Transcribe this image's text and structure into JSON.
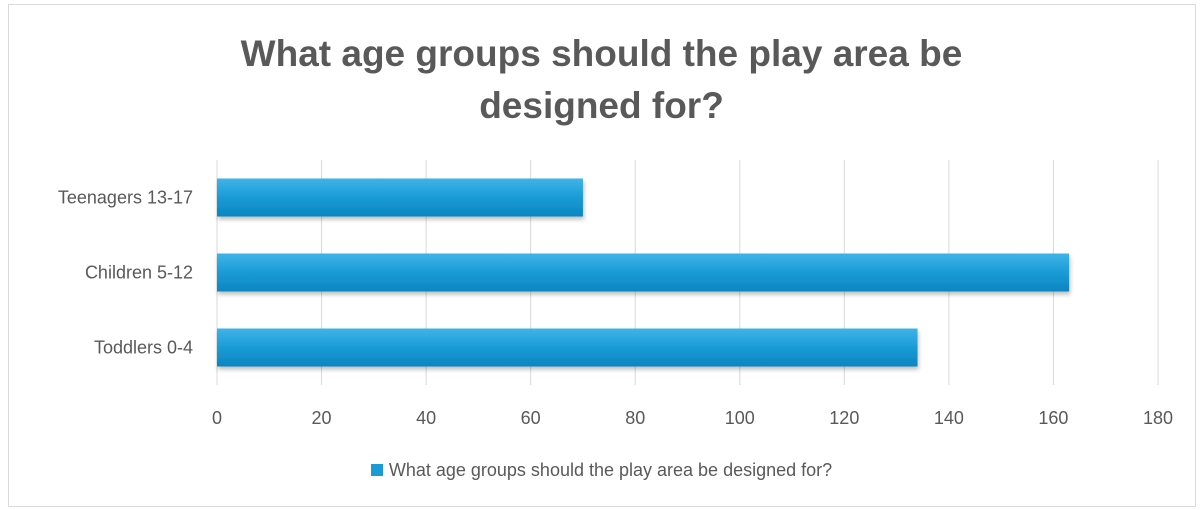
{
  "chart_data": {
    "type": "bar",
    "orientation": "horizontal",
    "title": "What age groups should the play area be designed for?",
    "title_lines": [
      "What age groups should the play area be",
      "designed for?"
    ],
    "categories": [
      "Teenagers 13-17",
      "Children 5-12",
      "Toddlers 0-4"
    ],
    "series": [
      {
        "name": "What age groups should the play area be designed for?",
        "values": [
          70,
          163,
          134
        ],
        "color": "#1a9bd6"
      }
    ],
    "xlim": [
      0,
      180
    ],
    "x_ticks": [
      "0",
      "20",
      "40",
      "60",
      "80",
      "100",
      "120",
      "140",
      "160",
      "180"
    ],
    "grid": true,
    "legend_position": "bottom"
  }
}
